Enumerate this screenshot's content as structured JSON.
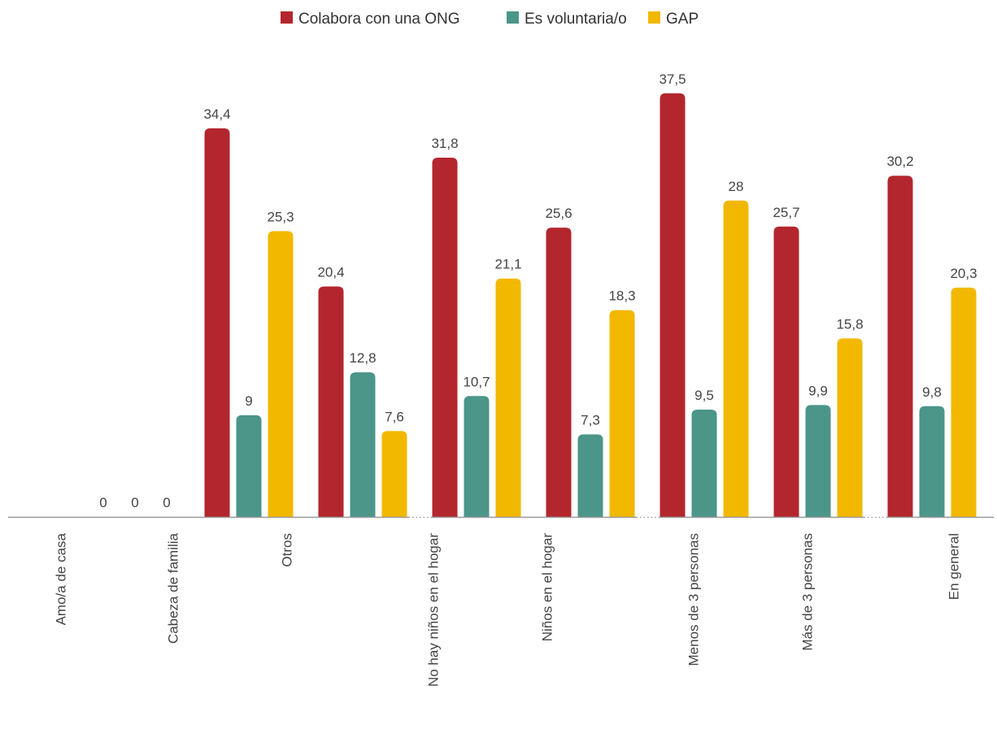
{
  "chart_data": {
    "type": "bar",
    "categories": [
      "Amo/a de casa",
      "Cabeza de familia",
      "Otros",
      "No hay niños en el hogar",
      "Niños en el hogar",
      "Menos de 3 personas",
      "Más de 3 personas",
      "En general"
    ],
    "value_labels": [
      [
        "0",
        "0",
        "0"
      ],
      [
        "34,4",
        "9",
        "25,3"
      ],
      [
        "20,4",
        "12,8",
        "7,6"
      ],
      [
        "31,8",
        "10,7",
        "21,1"
      ],
      [
        "25,6",
        "7,3",
        "18,3"
      ],
      [
        "37,5",
        "9,5",
        "28"
      ],
      [
        "25,7",
        "9,9",
        "15,8"
      ],
      [
        "30,2",
        "9,8",
        "20,3"
      ]
    ],
    "series": [
      {
        "name": "Colabora con una ONG",
        "color": "#b3262e",
        "values": [
          0,
          34.4,
          20.4,
          31.8,
          25.6,
          37.5,
          25.7,
          30.2
        ]
      },
      {
        "name": "Es voluntaria/o",
        "color": "#4b9589",
        "values": [
          0,
          9,
          12.8,
          10.7,
          7.3,
          9.5,
          9.9,
          9.8
        ]
      },
      {
        "name": "GAP",
        "color": "#f2b800",
        "values": [
          0,
          25.3,
          7.6,
          21.1,
          18.3,
          28,
          15.8,
          20.3
        ]
      }
    ],
    "group_separators_after": [
      2,
      4,
      6
    ],
    "ylim": [
      0,
      40
    ],
    "legend_position": "top-center",
    "grid": false
  }
}
